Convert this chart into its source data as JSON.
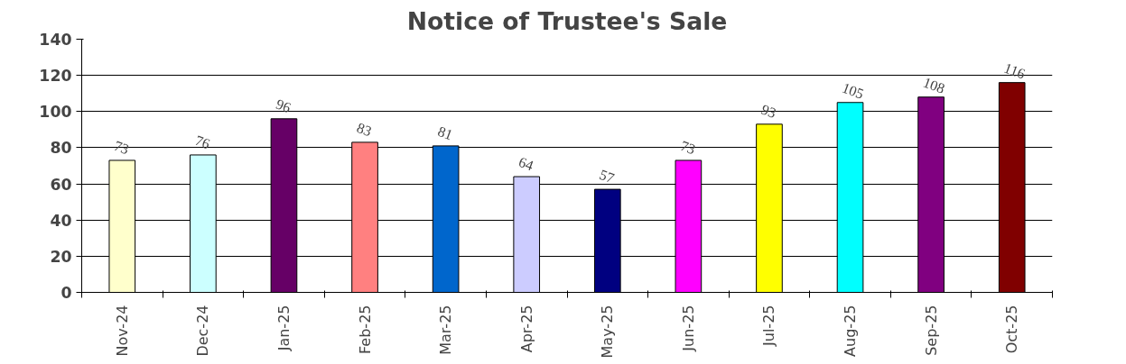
{
  "chart_data": {
    "type": "bar",
    "title": "Notice of Trustee's Sale",
    "categories": [
      "Nov-24",
      "Dec-24",
      "Jan-25",
      "Feb-25",
      "Mar-25",
      "Apr-25",
      "May-25",
      "Jun-25",
      "Jul-25",
      "Aug-25",
      "Sep-25",
      "Oct-25"
    ],
    "values": [
      73,
      76,
      96,
      83,
      81,
      64,
      57,
      73,
      93,
      105,
      108,
      116
    ],
    "colors": [
      "#ffffcc",
      "#ccffff",
      "#660066",
      "#ff8080",
      "#0066cc",
      "#ccccff",
      "#000080",
      "#ff00ff",
      "#ffff00",
      "#00ffff",
      "#800080",
      "#800000"
    ],
    "ylim": [
      0,
      140
    ],
    "yticks": [
      0,
      20,
      40,
      60,
      80,
      100,
      120,
      140
    ],
    "grid": "y",
    "data_labels": true
  }
}
